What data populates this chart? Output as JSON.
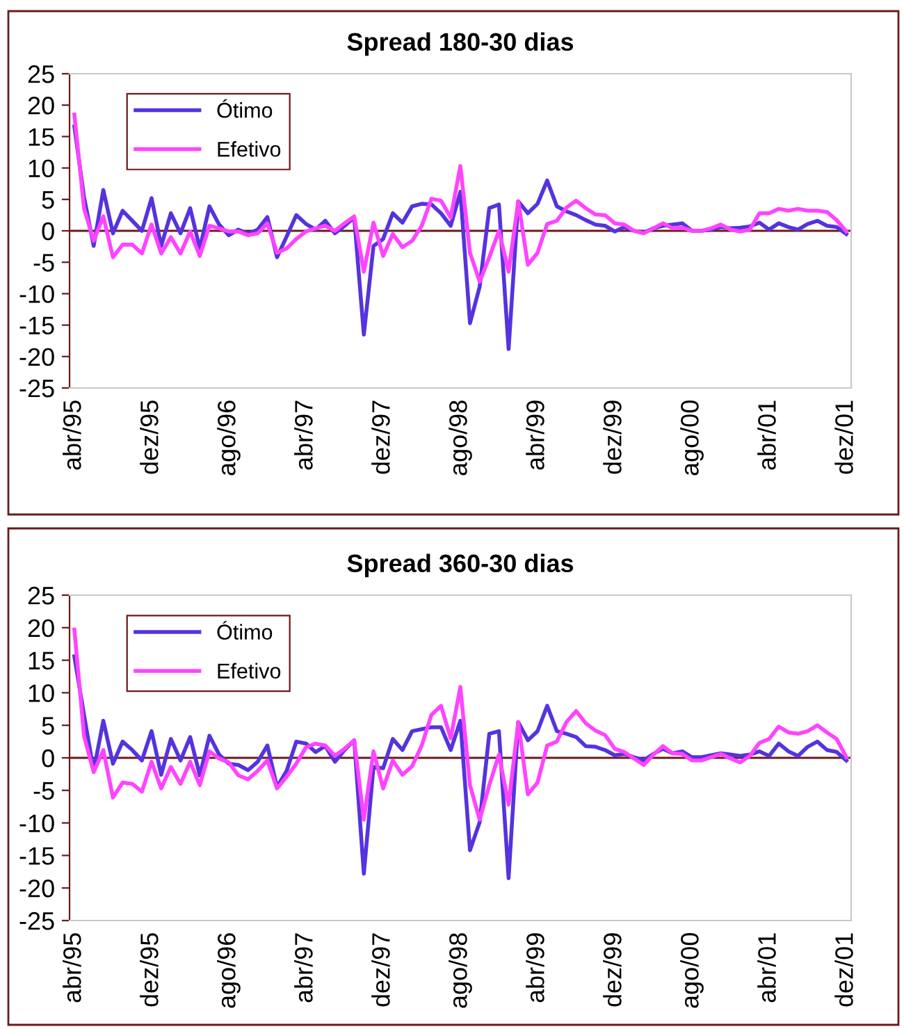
{
  "chart_data": [
    {
      "type": "line",
      "title": "Spread 180-30 dias",
      "categories": [
        "abr/95",
        null,
        null,
        null,
        null,
        null,
        null,
        null,
        "dez/95",
        null,
        null,
        null,
        null,
        null,
        null,
        null,
        "ago/96",
        null,
        null,
        null,
        null,
        null,
        null,
        null,
        "abr/97",
        null,
        null,
        null,
        null,
        null,
        null,
        null,
        "dez/97",
        null,
        null,
        null,
        null,
        null,
        null,
        null,
        "ago/98",
        null,
        null,
        null,
        null,
        null,
        null,
        null,
        "abr/99",
        null,
        null,
        null,
        null,
        null,
        null,
        null,
        "dez/99",
        null,
        null,
        null,
        null,
        null,
        null,
        null,
        "ago/00",
        null,
        null,
        null,
        null,
        null,
        null,
        null,
        "abr/01",
        null,
        null,
        null,
        null,
        null,
        null,
        null,
        "dez/01"
      ],
      "series": [
        {
          "name": "Ótimo",
          "color": "#5533dd",
          "values": [
            16.6,
            5.4,
            -2.4,
            6.5,
            -0.4,
            3.2,
            1.6,
            0,
            5.2,
            -2.4,
            2.8,
            -0.4,
            3.6,
            -2.8,
            3.9,
            1,
            -0.7,
            0.2,
            -0.5,
            0.2,
            2.2,
            -4.2,
            -0.9,
            2.5,
            1.1,
            0.2,
            1.6,
            -0.4,
            0.8,
            2.1,
            -16.5,
            -2.4,
            -1.3,
            2.8,
            1.3,
            3.9,
            4.3,
            4.2,
            2.8,
            0.8,
            6.2,
            -14.7,
            -8.9,
            3.6,
            4.2,
            -18.8,
            4.7,
            2.8,
            4.3,
            8,
            3.9,
            3.1,
            2.5,
            1.7,
            1,
            0.8,
            -0.1,
            0.6,
            0,
            -0.3,
            0.4,
            0.8,
            1,
            1.2,
            0,
            0,
            0.2,
            0.6,
            0.4,
            0.5,
            0.7,
            1.3,
            0.2,
            1.2,
            0.6,
            0.2,
            1.1,
            1.6,
            0.8,
            0.6,
            -0.5
          ]
        },
        {
          "name": "Efetivo",
          "color": "#ff44ff",
          "values": [
            18.5,
            3.6,
            -1.6,
            2.3,
            -4.2,
            -2.2,
            -2.2,
            -3.6,
            1,
            -3.6,
            -1,
            -3.6,
            -0.1,
            -4,
            0.8,
            0.4,
            -0.1,
            -0.1,
            -0.7,
            -0.4,
            1.2,
            -3.5,
            -2.8,
            -1.3,
            -0.1,
            0.4,
            0.8,
            0,
            1.2,
            2.3,
            -6.5,
            1.3,
            -4,
            -0.5,
            -2.6,
            -1.6,
            0.8,
            5.1,
            4.8,
            2.1,
            10.3,
            -3.5,
            -8.1,
            -4.2,
            0,
            -6.5,
            4.7,
            -5.4,
            -3.5,
            1.1,
            1.6,
            3.7,
            4.8,
            3.6,
            2.6,
            2.5,
            1.2,
            1,
            0,
            -0.4,
            0.4,
            1.2,
            0.4,
            0.5,
            0,
            0,
            0.4,
            1,
            0.2,
            -0.1,
            0.2,
            2.8,
            2.8,
            3.5,
            3.2,
            3.5,
            3.2,
            3.2,
            3,
            1.7,
            -0.1
          ]
        }
      ],
      "ylim": [
        -25,
        25
      ],
      "yticks": [
        -25,
        -20,
        -15,
        -10,
        -5,
        0,
        5,
        10,
        15,
        20,
        25
      ],
      "legend": "top left",
      "grid": false,
      "ref_lines": [
        {
          "axis": "y",
          "value": 0,
          "color": "#6b1a1a"
        }
      ]
    },
    {
      "type": "line",
      "title": "Spread 360-30 dias",
      "categories": [
        "abr/95",
        null,
        null,
        null,
        null,
        null,
        null,
        null,
        "dez/95",
        null,
        null,
        null,
        null,
        null,
        null,
        null,
        "ago/96",
        null,
        null,
        null,
        null,
        null,
        null,
        null,
        "abr/97",
        null,
        null,
        null,
        null,
        null,
        null,
        null,
        "dez/97",
        null,
        null,
        null,
        null,
        null,
        null,
        null,
        "ago/98",
        null,
        null,
        null,
        null,
        null,
        null,
        null,
        "abr/99",
        null,
        null,
        null,
        null,
        null,
        null,
        null,
        "dez/99",
        null,
        null,
        null,
        null,
        null,
        null,
        null,
        "ago/00",
        null,
        null,
        null,
        null,
        null,
        null,
        null,
        "abr/01",
        null,
        null,
        null,
        null,
        null,
        null,
        null,
        "dez/01"
      ],
      "series": [
        {
          "name": "Ótimo",
          "color": "#5533dd",
          "values": [
            15.6,
            6.6,
            -2,
            5.7,
            -0.9,
            2.5,
            1.2,
            -0.4,
            4.1,
            -2.6,
            2.9,
            -0.4,
            3.2,
            -2.7,
            3.4,
            0.5,
            -0.9,
            -1.1,
            -1.9,
            -0.6,
            1.9,
            -4.5,
            -2,
            2.5,
            2.2,
            0.9,
            1.8,
            -0.6,
            1.2,
            2.7,
            -17.8,
            -1.4,
            -1.6,
            2.9,
            1.2,
            4.1,
            4.4,
            4.7,
            4.7,
            1.2,
            5.7,
            -14.2,
            -9.9,
            3.7,
            4.1,
            -18.5,
            5.5,
            2.7,
            4.1,
            8,
            4.1,
            3.7,
            3.2,
            1.8,
            1.7,
            1.2,
            0.4,
            0.6,
            0.1,
            -0.4,
            0.6,
            1.4,
            0.7,
            1,
            0.1,
            0.1,
            0.4,
            0.7,
            0.5,
            0.3,
            0.5,
            1,
            0.3,
            2.2,
            1,
            0.3,
            1.7,
            2.5,
            1.2,
            0.9,
            -0.4
          ]
        },
        {
          "name": "Efetivo",
          "color": "#ff44ff",
          "values": [
            19.7,
            3.4,
            -2.2,
            1.2,
            -6.1,
            -3.8,
            -4,
            -5.2,
            -0.6,
            -4.7,
            -1.4,
            -4,
            -0.6,
            -4.2,
            1,
            -0.1,
            -0.7,
            -2.7,
            -3.3,
            -2,
            -0.4,
            -4.7,
            -2.9,
            -0.9,
            1.6,
            2.2,
            1.9,
            0.3,
            1.4,
            2.7,
            -9.5,
            1,
            -4.7,
            -0.4,
            -2.6,
            -1.3,
            1.9,
            6.6,
            8,
            3,
            10.9,
            -4.2,
            -9.5,
            -4.2,
            0.5,
            -7.2,
            5.5,
            -5.6,
            -3.8,
            1.9,
            2.5,
            5.5,
            7.2,
            5.3,
            4.2,
            3.5,
            1.4,
            0.9,
            -0.1,
            -1.1,
            0.5,
            1.8,
            0.7,
            0.6,
            -0.4,
            -0.4,
            0.1,
            0.6,
            -0.1,
            -0.7,
            0.3,
            2.3,
            2.9,
            4.8,
            3.9,
            3.7,
            4.1,
            5,
            3.9,
            2.9,
            0.1
          ]
        }
      ],
      "ylim": [
        -25,
        25
      ],
      "yticks": [
        -25,
        -20,
        -15,
        -10,
        -5,
        0,
        5,
        10,
        15,
        20,
        25
      ],
      "legend": "top left",
      "grid": false,
      "ref_lines": [
        {
          "axis": "y",
          "value": 0,
          "color": "#6b1a1a"
        }
      ]
    }
  ]
}
